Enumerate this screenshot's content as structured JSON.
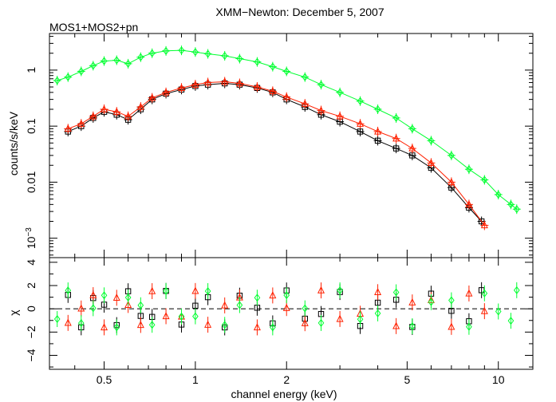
{
  "chart_data": [
    {
      "type": "scatter",
      "title": "XMM−Newton: December 5, 2007",
      "subtitle": "MOS1+MOS2+pn",
      "xlabel": "",
      "ylabel": "counts/s/keV",
      "xscale": "log",
      "yscale": "log",
      "xlim": [
        0.33,
        13.0
      ],
      "ylim": [
        0.00045,
        4.5
      ],
      "yticks": [
        {
          "value": 1,
          "label": "1"
        },
        {
          "value": 0.1,
          "label": "0.1"
        },
        {
          "value": 0.01,
          "label": "0.01"
        },
        {
          "value": 0.001,
          "label": "10",
          "sup": "−3"
        }
      ],
      "grid": false,
      "series": [
        {
          "marker": "square",
          "color": "#000000",
          "x": [
            0.38,
            0.42,
            0.46,
            0.5,
            0.55,
            0.6,
            0.66,
            0.72,
            0.8,
            0.9,
            1.0,
            1.1,
            1.25,
            1.4,
            1.6,
            1.8,
            2.0,
            2.3,
            2.6,
            3.0,
            3.5,
            4.0,
            4.6,
            5.2,
            6.0,
            7.0,
            8.0,
            8.8
          ],
          "y": [
            0.08,
            0.1,
            0.14,
            0.18,
            0.16,
            0.13,
            0.2,
            0.3,
            0.38,
            0.45,
            0.52,
            0.55,
            0.58,
            0.55,
            0.48,
            0.4,
            0.3,
            0.22,
            0.16,
            0.12,
            0.08,
            0.055,
            0.04,
            0.03,
            0.018,
            0.008,
            0.0035,
            0.002
          ]
        },
        {
          "marker": "triangle",
          "color": "#ff2000",
          "x": [
            0.38,
            0.42,
            0.46,
            0.5,
            0.55,
            0.6,
            0.66,
            0.72,
            0.8,
            0.9,
            1.0,
            1.1,
            1.25,
            1.4,
            1.6,
            1.8,
            2.0,
            2.3,
            2.6,
            3.0,
            3.5,
            4.0,
            4.6,
            5.2,
            6.0,
            7.0,
            8.0,
            9.0
          ],
          "y": [
            0.09,
            0.11,
            0.15,
            0.2,
            0.18,
            0.15,
            0.22,
            0.32,
            0.4,
            0.48,
            0.55,
            0.6,
            0.62,
            0.58,
            0.5,
            0.42,
            0.33,
            0.25,
            0.19,
            0.15,
            0.11,
            0.08,
            0.06,
            0.04,
            0.022,
            0.01,
            0.004,
            0.0017
          ]
        },
        {
          "marker": "diamond",
          "color": "#00ff30",
          "x": [
            0.35,
            0.38,
            0.42,
            0.46,
            0.5,
            0.55,
            0.6,
            0.66,
            0.72,
            0.8,
            0.9,
            1.0,
            1.1,
            1.25,
            1.4,
            1.6,
            1.8,
            2.0,
            2.3,
            2.6,
            3.0,
            3.5,
            4.0,
            4.6,
            5.2,
            6.0,
            7.0,
            8.0,
            9.0,
            10.0,
            11.0,
            11.5
          ],
          "y": [
            0.65,
            0.75,
            0.95,
            1.2,
            1.45,
            1.5,
            1.3,
            1.7,
            2.0,
            2.2,
            2.25,
            2.1,
            1.95,
            1.8,
            1.6,
            1.4,
            1.15,
            0.95,
            0.75,
            0.55,
            0.4,
            0.28,
            0.2,
            0.14,
            0.09,
            0.055,
            0.03,
            0.017,
            0.011,
            0.006,
            0.004,
            0.0033
          ]
        }
      ]
    },
    {
      "type": "scatter",
      "xlabel": "channel energy (keV)",
      "ylabel": "χ",
      "xscale": "log",
      "xlim": [
        0.33,
        13.0
      ],
      "ylim": [
        -5.2,
        4.4
      ],
      "yticks": [
        -4,
        -2,
        0,
        2,
        4
      ],
      "xticks": [
        {
          "value": 0.5,
          "label": "0.5"
        },
        {
          "value": 1,
          "label": "1"
        },
        {
          "value": 2,
          "label": "2"
        },
        {
          "value": 5,
          "label": "5"
        },
        {
          "value": 10,
          "label": "10"
        }
      ],
      "reference_line": 0,
      "grid": false
    }
  ]
}
